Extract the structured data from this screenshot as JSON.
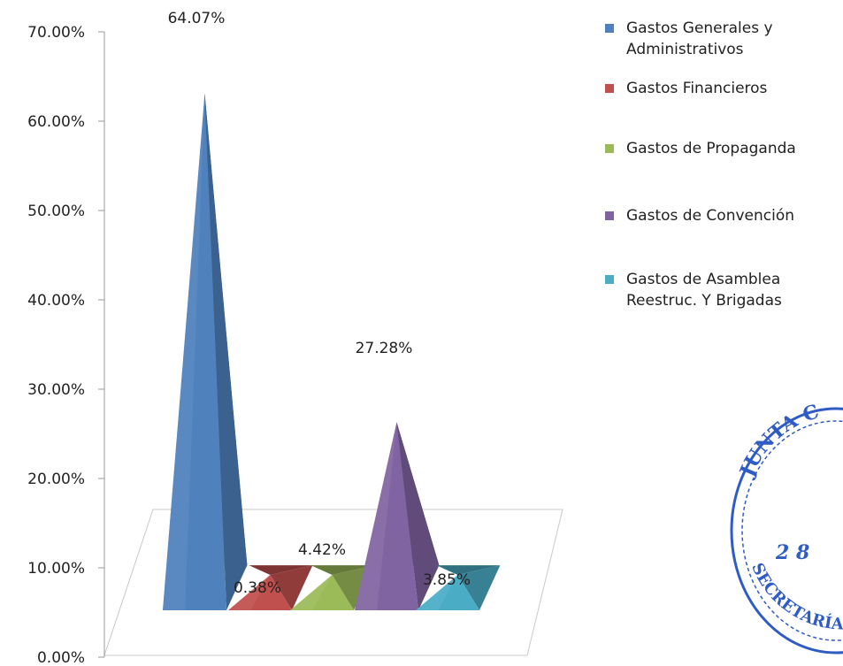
{
  "chart_data": {
    "type": "bar",
    "style": "3d-pyramid",
    "categories": [
      "Gastos Generales y Administrativos",
      "Gastos Financieros",
      "Gastos de Propaganda",
      "Gastos de Convención",
      "Gastos de Asamblea Reestruc. Y Brigadas"
    ],
    "values": [
      64.07,
      0.38,
      4.42,
      27.28,
      3.85
    ],
    "data_labels": [
      "64.07%",
      "0.38%",
      "4.42%",
      "27.28%",
      "3.85%"
    ],
    "y_ticks": [
      "0.00%",
      "10.00%",
      "20.00%",
      "30.00%",
      "40.00%",
      "50.00%",
      "60.00%",
      "70.00%"
    ],
    "ylim": [
      0,
      70
    ],
    "legend_position": "right",
    "colors": [
      "#4f81bd",
      "#c0504d",
      "#9bbb59",
      "#8064a2",
      "#4bacc6"
    ]
  },
  "legend": {
    "items": [
      {
        "label": "Gastos Generales y Administrativos",
        "color": "#4f81bd"
      },
      {
        "label": "Gastos Financieros",
        "color": "#c0504d"
      },
      {
        "label": "Gastos de Propaganda",
        "color": "#9bbb59"
      },
      {
        "label": "Gastos de Convención",
        "color": "#8064a2"
      },
      {
        "label": "Gastos de Asamblea Reestruc. Y Brigadas",
        "color": "#4bacc6"
      }
    ]
  },
  "stamp": {
    "top_text": "JUNTA C",
    "middle_text": "2 8",
    "bottom_text": "SECRETARÍA",
    "color": "#2f5bc4"
  }
}
